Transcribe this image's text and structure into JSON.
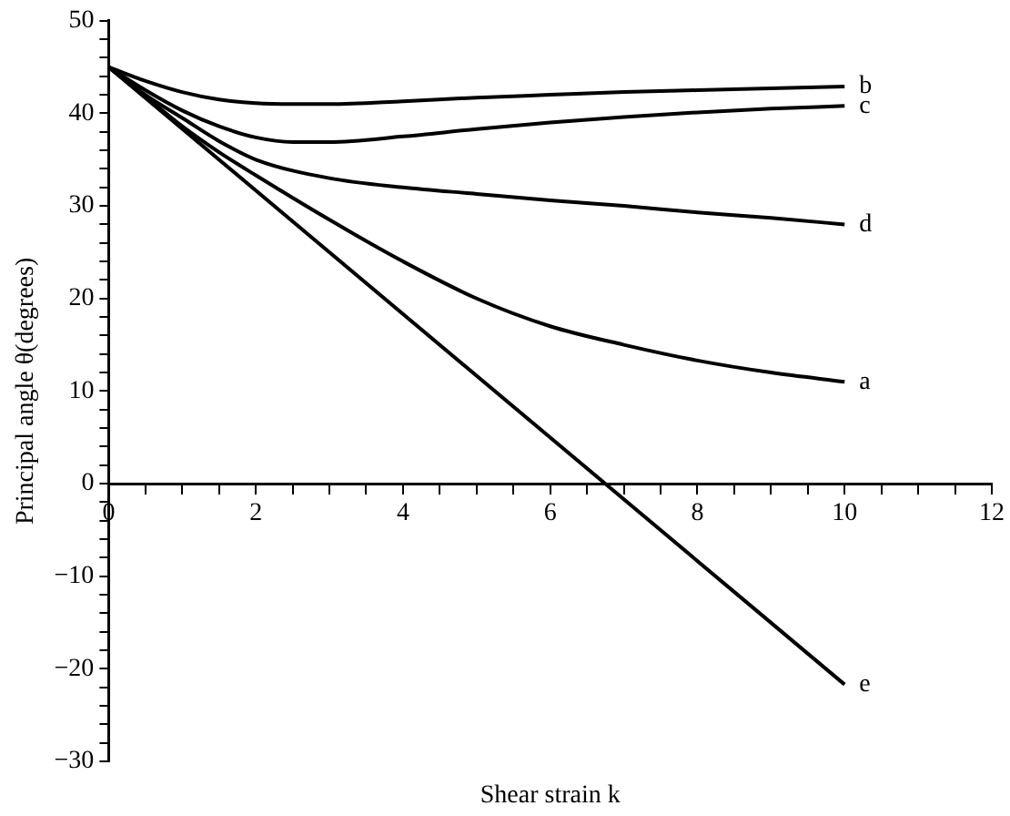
{
  "chart_data": {
    "type": "line",
    "xlabel": "Shear strain k",
    "ylabel": "Principal angle θ(degrees)",
    "xlim": [
      0,
      12
    ],
    "ylim": [
      -30,
      50
    ],
    "xticks": [
      0,
      {
        "value": 0.5,
        "label": null
      },
      {
        "value": 1,
        "label": null
      },
      {
        "value": 1.5,
        "label": null
      },
      2,
      {
        "value": 2.5,
        "label": null
      },
      {
        "value": 3,
        "label": null
      },
      {
        "value": 3.5,
        "label": null
      },
      4,
      {
        "value": 4.5,
        "label": null
      },
      {
        "value": 5,
        "label": null
      },
      {
        "value": 5.5,
        "label": null
      },
      6,
      {
        "value": 6.5,
        "label": null
      },
      {
        "value": 7,
        "label": null
      },
      {
        "value": 7.5,
        "label": null
      },
      8,
      {
        "value": 8.5,
        "label": null
      },
      {
        "value": 9,
        "label": null
      },
      {
        "value": 9.5,
        "label": null
      },
      10,
      {
        "value": 10.5,
        "label": null
      },
      {
        "value": 11,
        "label": null
      },
      {
        "value": 11.5,
        "label": null
      },
      12
    ],
    "yticks": [
      -30,
      {
        "value": -28,
        "label": null
      },
      {
        "value": -26,
        "label": null
      },
      {
        "value": -24,
        "label": null
      },
      {
        "value": -22,
        "label": null
      },
      -20,
      {
        "value": -18,
        "label": null
      },
      {
        "value": -16,
        "label": null
      },
      {
        "value": -14,
        "label": null
      },
      {
        "value": -12,
        "label": null
      },
      -10,
      {
        "value": -8,
        "label": null
      },
      {
        "value": -6,
        "label": null
      },
      {
        "value": -4,
        "label": null
      },
      {
        "value": -2,
        "label": null
      },
      0,
      {
        "value": 2,
        "label": null
      },
      {
        "value": 4,
        "label": null
      },
      {
        "value": 6,
        "label": null
      },
      {
        "value": 8,
        "label": null
      },
      10,
      {
        "value": 12,
        "label": null
      },
      {
        "value": 14,
        "label": null
      },
      {
        "value": 16,
        "label": null
      },
      {
        "value": 18,
        "label": null
      },
      20,
      {
        "value": 22,
        "label": null
      },
      {
        "value": 24,
        "label": null
      },
      {
        "value": 26,
        "label": null
      },
      {
        "value": 28,
        "label": null
      },
      30,
      {
        "value": 32,
        "label": null
      },
      {
        "value": 34,
        "label": null
      },
      {
        "value": 36,
        "label": null
      },
      {
        "value": 38,
        "label": null
      },
      40,
      {
        "value": 42,
        "label": null
      },
      {
        "value": 44,
        "label": null
      },
      {
        "value": 46,
        "label": null
      },
      {
        "value": 48,
        "label": null
      },
      50
    ],
    "grid": false,
    "legend": false,
    "marker": "none",
    "line_style": "solid",
    "series": [
      {
        "name": "a",
        "color": "#000000",
        "x": [
          0,
          0.5,
          1,
          1.5,
          2,
          3,
          4,
          5,
          6,
          7,
          8,
          9,
          10
        ],
        "values": [
          45,
          41.8,
          38.6,
          35.8,
          33.3,
          28.5,
          24,
          20,
          17,
          15,
          13.3,
          12,
          11
        ]
      },
      {
        "name": "b",
        "color": "#000000",
        "x": [
          0,
          0.5,
          1,
          1.5,
          2,
          2.5,
          3,
          4,
          5,
          6,
          7,
          8,
          9,
          10
        ],
        "values": [
          45,
          43.5,
          42.3,
          41.5,
          41.1,
          41,
          41,
          41.3,
          41.7,
          42,
          42.3,
          42.5,
          42.7,
          42.9
        ]
      },
      {
        "name": "c",
        "color": "#000000",
        "x": [
          0,
          0.5,
          1,
          1.5,
          2,
          2.5,
          3,
          4,
          5,
          6,
          7,
          8,
          9,
          10
        ],
        "values": [
          45,
          42.5,
          40.3,
          38.6,
          37.4,
          36.9,
          36.9,
          37.5,
          38.3,
          39,
          39.6,
          40.1,
          40.5,
          40.8
        ]
      },
      {
        "name": "d",
        "color": "#000000",
        "x": [
          0,
          0.5,
          1,
          1.5,
          2,
          3,
          4,
          5,
          6,
          7,
          8,
          9,
          10
        ],
        "values": [
          45,
          42,
          39.5,
          37,
          35,
          33,
          32,
          31.3,
          30.6,
          30,
          29.3,
          28.7,
          28
        ]
      },
      {
        "name": "e",
        "color": "#000000",
        "x": [
          0,
          10
        ],
        "values": [
          45,
          -21.7
        ]
      }
    ]
  }
}
